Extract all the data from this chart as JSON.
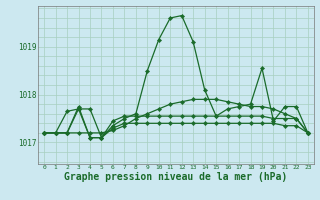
{
  "bg_color": "#cce8f0",
  "grid_color": "#a8cfc0",
  "line_color": "#1a6b2a",
  "xlabel": "Graphe pression niveau de la mer (hPa)",
  "xlabel_fontsize": 7,
  "ylabel_ticks": [
    1017,
    1018,
    1019
  ],
  "xlim": [
    -0.5,
    23.5
  ],
  "ylim": [
    1016.55,
    1019.85
  ],
  "xticks": [
    0,
    1,
    2,
    3,
    4,
    5,
    6,
    7,
    8,
    9,
    10,
    11,
    12,
    13,
    14,
    15,
    16,
    17,
    18,
    19,
    20,
    21,
    22,
    23
  ],
  "series": [
    [
      1017.2,
      1017.2,
      1017.2,
      1017.75,
      1017.1,
      1017.1,
      1017.35,
      1017.5,
      1017.6,
      1018.5,
      1019.15,
      1019.6,
      1019.65,
      1019.1,
      1018.1,
      1017.55,
      1017.7,
      1017.75,
      1017.8,
      1018.55,
      1017.45,
      1017.75,
      1017.75,
      1017.2
    ],
    [
      1017.2,
      1017.2,
      1017.2,
      1017.2,
      1017.2,
      1017.2,
      1017.25,
      1017.35,
      1017.5,
      1017.6,
      1017.7,
      1017.8,
      1017.85,
      1017.9,
      1017.9,
      1017.9,
      1017.85,
      1017.8,
      1017.75,
      1017.75,
      1017.7,
      1017.6,
      1017.5,
      1017.2
    ],
    [
      1017.2,
      1017.2,
      1017.2,
      1017.7,
      1017.7,
      1017.1,
      1017.45,
      1017.55,
      1017.55,
      1017.55,
      1017.55,
      1017.55,
      1017.55,
      1017.55,
      1017.55,
      1017.55,
      1017.55,
      1017.55,
      1017.55,
      1017.55,
      1017.5,
      1017.5,
      1017.5,
      1017.2
    ],
    [
      1017.2,
      1017.2,
      1017.65,
      1017.7,
      1017.1,
      1017.1,
      1017.3,
      1017.4,
      1017.4,
      1017.4,
      1017.4,
      1017.4,
      1017.4,
      1017.4,
      1017.4,
      1017.4,
      1017.4,
      1017.4,
      1017.4,
      1017.4,
      1017.4,
      1017.35,
      1017.35,
      1017.2
    ]
  ]
}
